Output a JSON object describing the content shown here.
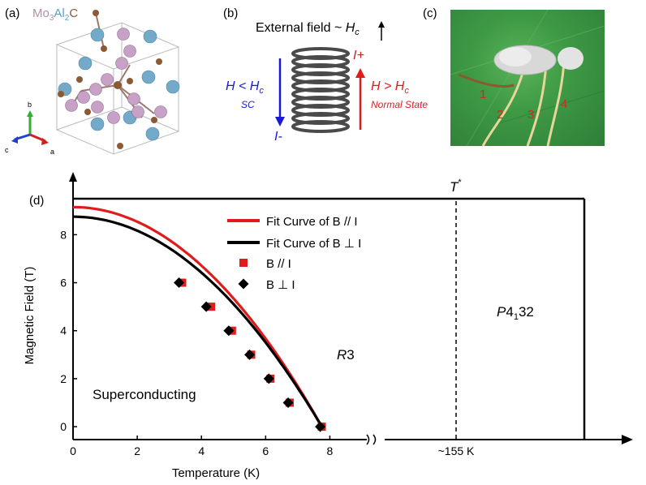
{
  "panel_a": {
    "label": "(a)",
    "formula_parts": [
      "Mo",
      "3",
      "Al",
      "2",
      "C"
    ],
    "axes": [
      "b",
      "c",
      "a"
    ]
  },
  "panel_b": {
    "label": "(b)",
    "external_field": "External field ~ ",
    "external_field_var": "H",
    "external_field_sub": "c",
    "left_condition": "H < H",
    "left_condition_sub": "c",
    "left_state": "SC",
    "left_current": "I-",
    "right_current": "I+",
    "right_condition": "H > H",
    "right_condition_sub": "c",
    "right_state": "Normal State",
    "colors": {
      "left": "#1a1ad6",
      "right": "#e01b1b",
      "coil": "#4a4a4a"
    }
  },
  "panel_c": {
    "label": "(c)",
    "wire_numbers": [
      "1",
      "2",
      "3",
      "4"
    ]
  },
  "chart_data": {
    "panel_label": "(d)",
    "type": "scatter",
    "xlabel": "Temperature (K)",
    "ylabel": "Magnetic Field (T)",
    "xlim": [
      0,
      9
    ],
    "ylim": [
      -0.2,
      9.5
    ],
    "xticks": [
      0,
      2,
      4,
      6,
      8
    ],
    "yticks": [
      0,
      2,
      4,
      6,
      8
    ],
    "series": [
      {
        "name": "B // I",
        "marker": "square",
        "color": "#e01b1b",
        "points": [
          [
            3.4,
            6.0
          ],
          [
            4.3,
            5.0
          ],
          [
            4.95,
            4.0
          ],
          [
            5.55,
            3.0
          ],
          [
            6.15,
            2.0
          ],
          [
            6.75,
            1.0
          ],
          [
            7.75,
            0.0
          ]
        ]
      },
      {
        "name": "B ⊥ I",
        "marker": "diamond",
        "color": "#000000",
        "points": [
          [
            3.3,
            6.0
          ],
          [
            4.15,
            5.0
          ],
          [
            4.85,
            4.0
          ],
          [
            5.5,
            3.0
          ],
          [
            6.1,
            2.0
          ],
          [
            6.7,
            1.0
          ],
          [
            7.7,
            0.0
          ]
        ]
      }
    ],
    "fits": [
      {
        "name": "Fit Curve of B // I",
        "color": "#e01b1b",
        "tc": 7.75,
        "hc0": 9.15
      },
      {
        "name": "Fit Curve of B ⊥ I",
        "color": "#000000",
        "tc": 7.75,
        "hc0": 8.75
      }
    ],
    "phase_boundary_field": 9.5,
    "regions": {
      "superconducting": "Superconducting",
      "r3": "R",
      "r3_suffix": "3",
      "p4132_italic": "P",
      "p4132_main": "4",
      "p4132_sub": "1",
      "p4132_tail": "32"
    },
    "transition": {
      "label": "T",
      "sup": "*",
      "tick_label": "~155 K"
    },
    "legend_position": "upper-center"
  }
}
